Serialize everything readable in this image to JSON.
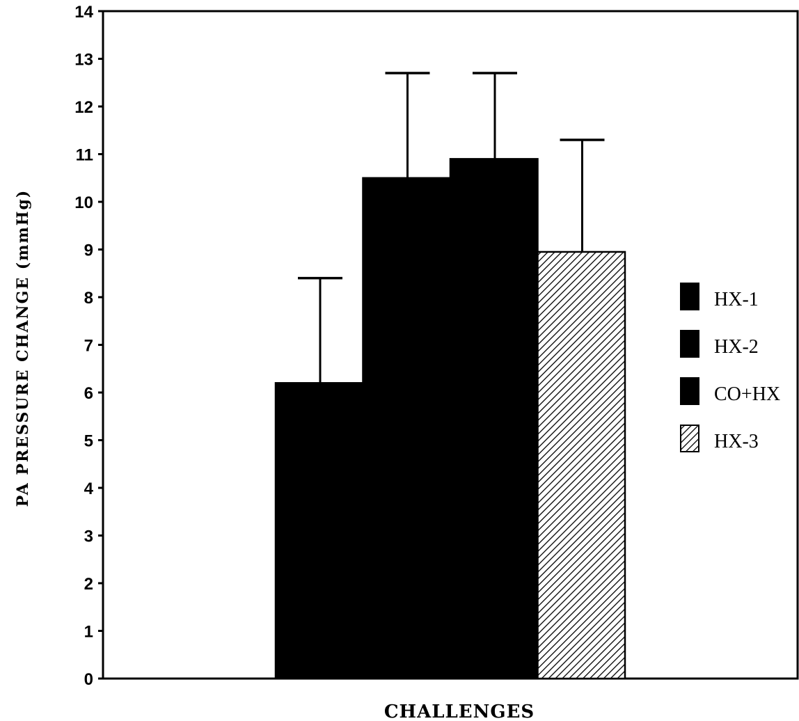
{
  "chart_data": {
    "type": "bar",
    "xlabel": "CHALLENGES",
    "ylabel": "PA   PRESSURE   CHANGE   (mmHg)",
    "ylim": [
      0,
      14
    ],
    "yticks": [
      0,
      1,
      2,
      3,
      4,
      5,
      6,
      7,
      8,
      9,
      10,
      11,
      12,
      13,
      14
    ],
    "grid": false,
    "legend_position": "right",
    "series": [
      {
        "name": "HX-1",
        "value": 6.2,
        "error": 2.2,
        "fill": "solid",
        "color": "#000000"
      },
      {
        "name": "HX-2",
        "value": 10.5,
        "error": 2.2,
        "fill": "solid",
        "color": "#000000"
      },
      {
        "name": "CO+HX",
        "value": 10.9,
        "error": 1.8,
        "fill": "solid",
        "color": "#000000"
      },
      {
        "name": "HX-3",
        "value": 8.95,
        "error": 2.35,
        "fill": "hatched",
        "color": "#000000"
      }
    ]
  }
}
